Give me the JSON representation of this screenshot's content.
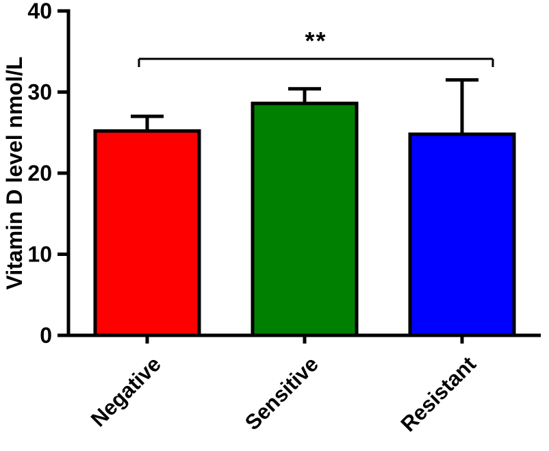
{
  "chart_data": {
    "type": "bar",
    "title": "",
    "xlabel": "",
    "ylabel": "Vitamin D level nmol/L",
    "categories": [
      "Negative",
      "Sensitive",
      "Resistant"
    ],
    "values": [
      25.2,
      28.6,
      24.8
    ],
    "errors_plus": [
      1.8,
      1.8,
      6.7
    ],
    "bar_colors": [
      "#ff0000",
      "#008000",
      "#0000ff"
    ],
    "ylim": [
      0,
      40
    ],
    "yticks": [
      0,
      10,
      20,
      30,
      40
    ],
    "grid": false,
    "legend": false,
    "significance": {
      "label": "**",
      "from_index": 0,
      "to_index": 2
    }
  },
  "style": {
    "axis_color": "#000000",
    "background": "#ffffff"
  }
}
